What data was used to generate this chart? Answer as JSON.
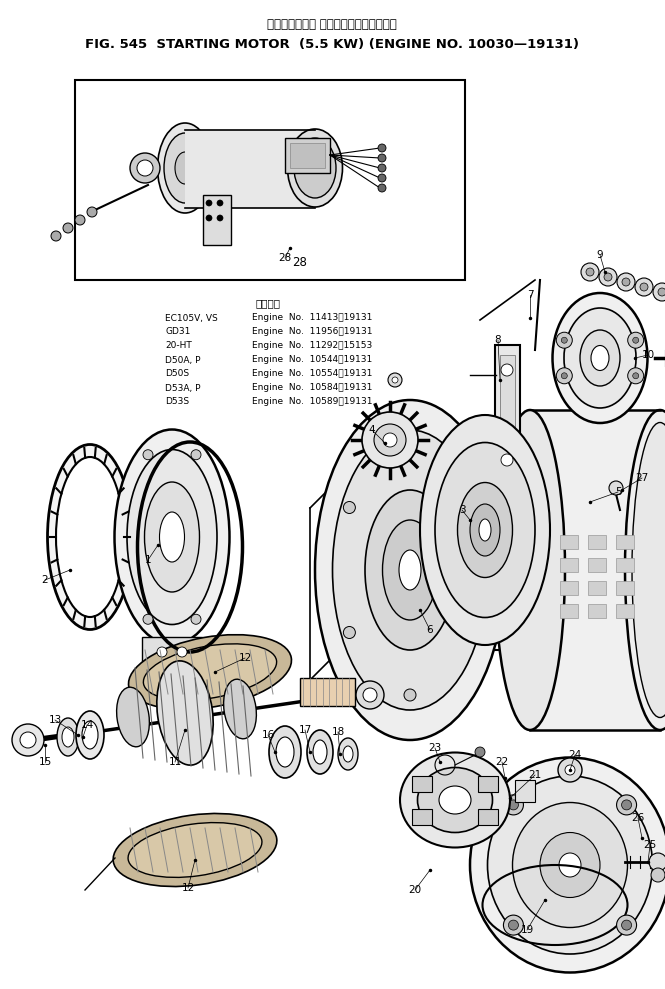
{
  "fig_width": 6.65,
  "fig_height": 9.89,
  "dpi": 100,
  "bg_color": "#ffffff",
  "title_jp": "スターティング モータ　　　　適用号機",
  "title_en": "FIG. 545  STARTING MOTOR  (5.5 KW) (ENGINE NO. 10030—19131)",
  "app_header": "適用号機",
  "app_data": [
    [
      "EC105V, VS",
      "Engine  No.  11413～19131"
    ],
    [
      "GD31",
      "Engine  No.  11956～19131"
    ],
    [
      "20-HT",
      "Engine  No.  11292～15153"
    ],
    [
      "D50A, P",
      "Engine  No.  10544～19131"
    ],
    [
      "D50S",
      "Engine  No.  10554～19131"
    ],
    [
      "D53A, P",
      "Engine  No.  10584～19131"
    ],
    [
      "D53S",
      "Engine  No.  10589～19131"
    ]
  ]
}
